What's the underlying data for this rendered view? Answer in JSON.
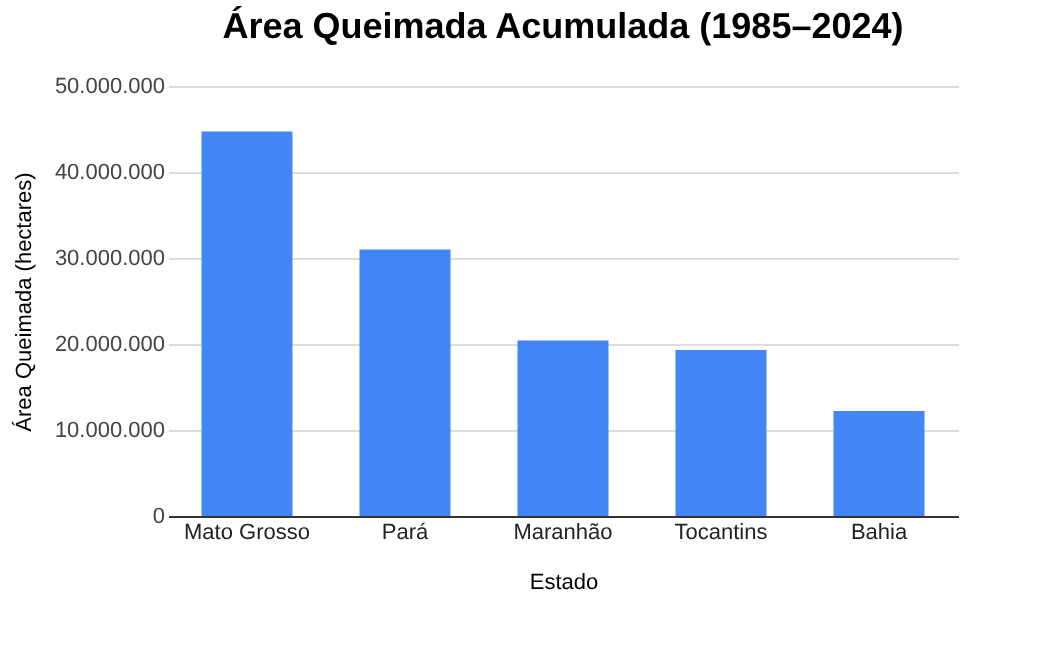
{
  "chart_data": {
    "type": "bar",
    "title": "Área Queimada Acumulada (1985–2024)",
    "xlabel": "Estado",
    "ylabel": "Área Queimada (hectares)",
    "categories": [
      "Mato Grosso",
      "Pará",
      "Maranhão",
      "Tocantins",
      "Bahia"
    ],
    "values": [
      44700000,
      31000000,
      20400000,
      19300000,
      12200000
    ],
    "color": "#4285f4",
    "ylim": [
      0,
      50000000
    ],
    "yticks": [
      0,
      {
        "value": 10000000,
        "label": "10.000.000"
      },
      {
        "value": 20000000,
        "label": "20.000.000"
      },
      {
        "value": 30000000,
        "label": "30.000.000"
      },
      {
        "value": 40000000,
        "label": "40.000.000"
      },
      {
        "value": 50000000,
        "label": "50.000.000"
      }
    ],
    "grid": "y"
  }
}
